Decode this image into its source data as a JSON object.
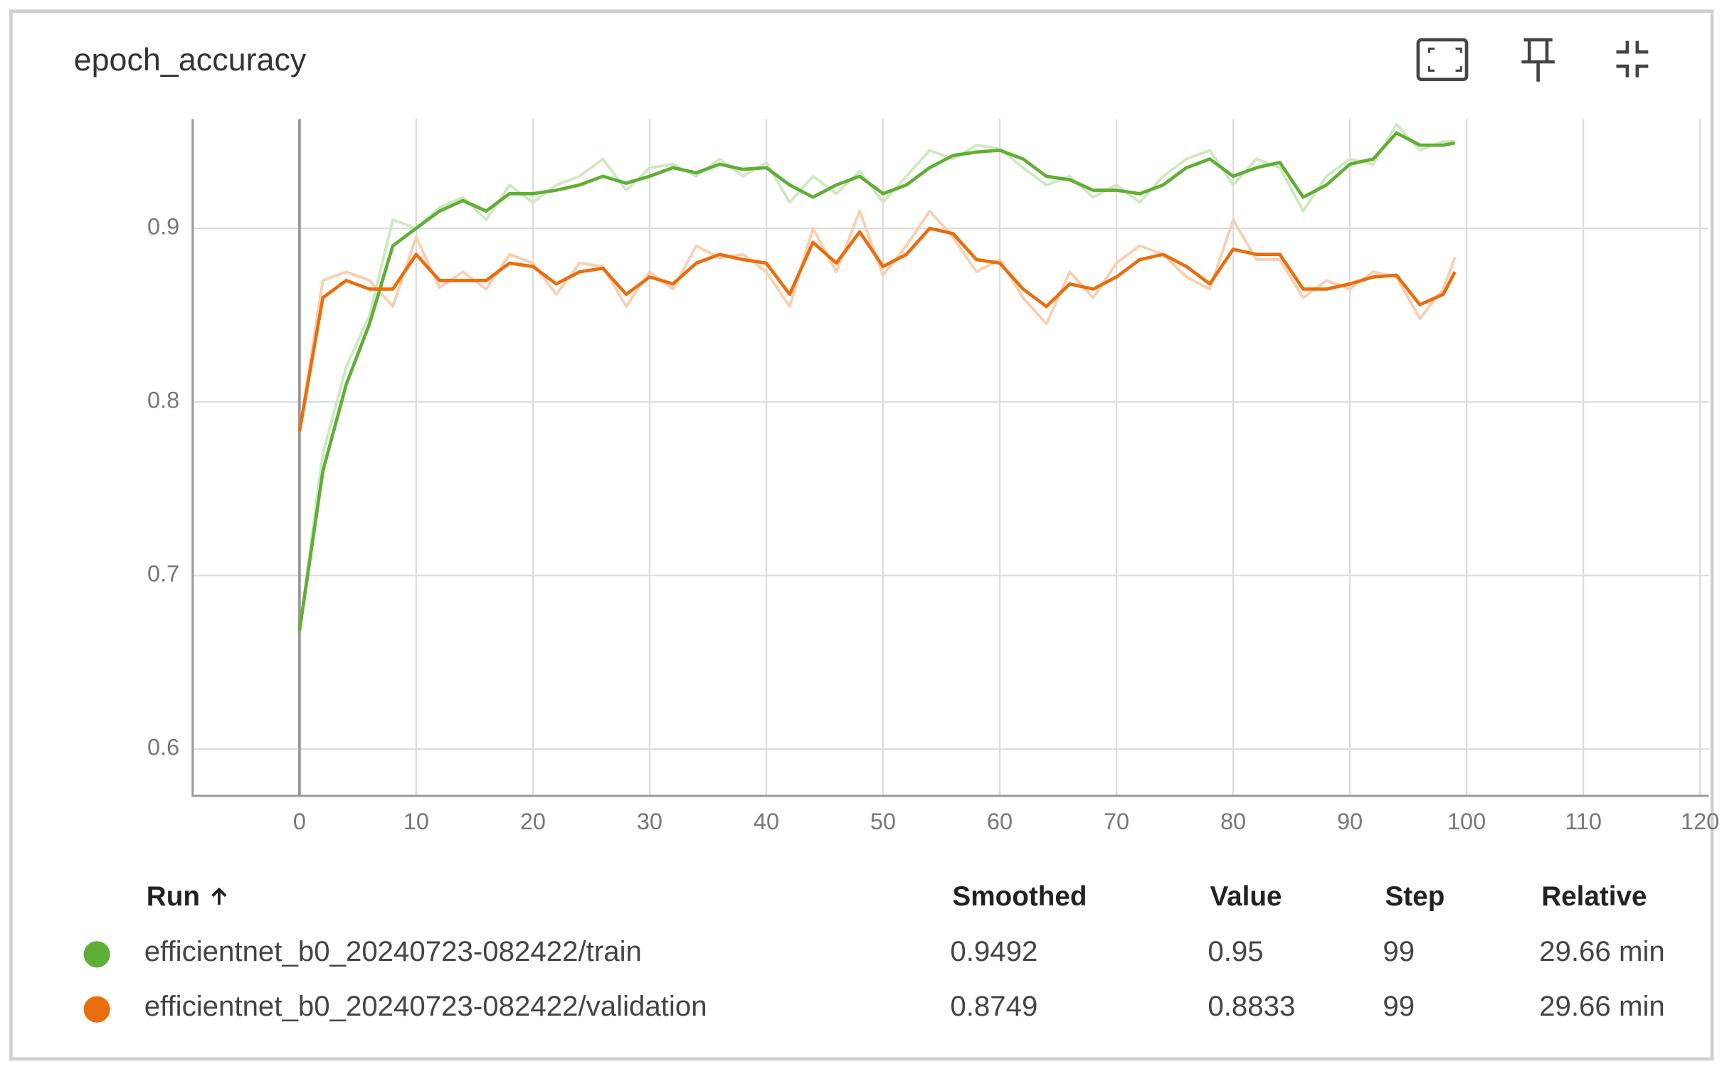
{
  "card_title": "epoch_accuracy",
  "chart_data": {
    "type": "line",
    "x": [
      0,
      2,
      4,
      6,
      8,
      10,
      12,
      14,
      16,
      18,
      20,
      22,
      24,
      26,
      28,
      30,
      32,
      34,
      36,
      38,
      40,
      42,
      44,
      46,
      48,
      50,
      52,
      54,
      56,
      58,
      60,
      62,
      64,
      66,
      68,
      70,
      72,
      74,
      76,
      78,
      80,
      82,
      84,
      86,
      88,
      90,
      92,
      94,
      96,
      98,
      99
    ],
    "series": [
      {
        "name": "efficientnet_b0_20240723-082422/train",
        "color": "#5fae35",
        "raw_color": "#cfe8bf",
        "values": [
          0.668,
          0.76,
          0.81,
          0.845,
          0.89,
          0.9,
          0.91,
          0.916,
          0.91,
          0.92,
          0.92,
          0.922,
          0.925,
          0.93,
          0.926,
          0.93,
          0.935,
          0.932,
          0.937,
          0.934,
          0.935,
          0.925,
          0.918,
          0.925,
          0.93,
          0.92,
          0.925,
          0.935,
          0.942,
          0.944,
          0.945,
          0.94,
          0.93,
          0.928,
          0.922,
          0.922,
          0.92,
          0.925,
          0.935,
          0.94,
          0.93,
          0.935,
          0.938,
          0.918,
          0.925,
          0.937,
          0.94,
          0.955,
          0.948,
          0.948,
          0.9492
        ],
        "raw_values": [
          0.668,
          0.77,
          0.82,
          0.85,
          0.905,
          0.9,
          0.912,
          0.918,
          0.905,
          0.925,
          0.915,
          0.925,
          0.93,
          0.94,
          0.922,
          0.935,
          0.937,
          0.93,
          0.94,
          0.93,
          0.938,
          0.915,
          0.93,
          0.92,
          0.933,
          0.915,
          0.93,
          0.945,
          0.94,
          0.948,
          0.946,
          0.935,
          0.925,
          0.93,
          0.918,
          0.925,
          0.915,
          0.93,
          0.94,
          0.945,
          0.925,
          0.94,
          0.935,
          0.91,
          0.93,
          0.94,
          0.937,
          0.96,
          0.945,
          0.95,
          0.95
        ]
      },
      {
        "name": "efficientnet_b0_20240723-082422/validation",
        "color": "#ea6d0c",
        "raw_color": "#f8cfb2",
        "values": [
          0.783,
          0.86,
          0.87,
          0.865,
          0.865,
          0.885,
          0.87,
          0.87,
          0.87,
          0.88,
          0.878,
          0.868,
          0.875,
          0.877,
          0.862,
          0.872,
          0.868,
          0.88,
          0.885,
          0.882,
          0.88,
          0.862,
          0.892,
          0.88,
          0.898,
          0.878,
          0.885,
          0.9,
          0.897,
          0.882,
          0.88,
          0.865,
          0.855,
          0.868,
          0.865,
          0.872,
          0.882,
          0.885,
          0.878,
          0.868,
          0.888,
          0.885,
          0.885,
          0.865,
          0.865,
          0.868,
          0.872,
          0.873,
          0.856,
          0.862,
          0.8749
        ],
        "raw_values": [
          0.783,
          0.87,
          0.875,
          0.87,
          0.855,
          0.895,
          0.866,
          0.875,
          0.865,
          0.885,
          0.88,
          0.862,
          0.88,
          0.878,
          0.855,
          0.875,
          0.865,
          0.89,
          0.883,
          0.885,
          0.875,
          0.855,
          0.9,
          0.875,
          0.91,
          0.873,
          0.89,
          0.91,
          0.895,
          0.875,
          0.882,
          0.86,
          0.845,
          0.875,
          0.86,
          0.88,
          0.89,
          0.885,
          0.872,
          0.865,
          0.905,
          0.882,
          0.882,
          0.86,
          0.87,
          0.865,
          0.875,
          0.872,
          0.848,
          0.865,
          0.8833
        ]
      }
    ],
    "xlim": [
      -9.15,
      120.75
    ],
    "xticks": [
      0,
      10,
      20,
      30,
      40,
      50,
      60,
      70,
      80,
      90,
      100,
      110,
      120
    ],
    "ylim": [
      0.573,
      0.963
    ],
    "yticks": [
      0.6,
      0.7,
      0.8,
      0.9
    ],
    "grid": true
  },
  "table": {
    "header": [
      "Run",
      "Smoothed",
      "Value",
      "Step",
      "Relative"
    ],
    "rows": [
      [
        "efficientnet_b0_20240723-082422/train",
        "0.9492",
        "0.95",
        "99",
        "29.66 min"
      ],
      [
        "efficientnet_b0_20240723-082422/validation",
        "0.8749",
        "0.8833",
        "99",
        "29.66 min"
      ]
    ]
  }
}
